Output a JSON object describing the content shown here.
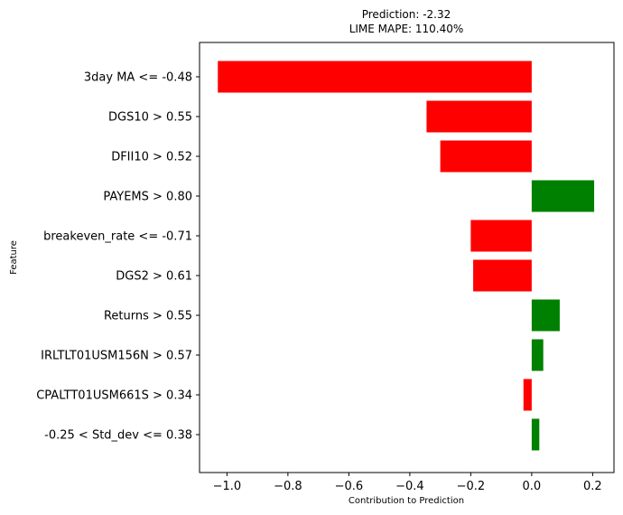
{
  "chart_data": {
    "type": "bar",
    "orientation": "horizontal",
    "title": "Prediction: -2.32",
    "subtitle": "LIME MAPE: 110.40%",
    "xlabel": "Contribution to Prediction",
    "ylabel": "Feature",
    "xlim": [
      -1.09,
      0.27
    ],
    "xticks": [
      -1.0,
      -0.8,
      -0.6,
      -0.4,
      -0.2,
      0.0,
      0.2
    ],
    "xtick_labels": [
      "−1.0",
      "−0.8",
      "−0.6",
      "−0.4",
      "−0.2",
      "0.0",
      "0.2"
    ],
    "grid": false,
    "positive_color": "#008000",
    "negative_color": "#ff0000",
    "categories": [
      "3day MA <= -0.48",
      "DGS10 > 0.55",
      "DFII10 > 0.52",
      "PAYEMS > 0.80",
      "breakeven_rate <= -0.71",
      "DGS2 > 0.61",
      "Returns > 0.55",
      "IRLTLT01USM156N > 0.57",
      "CPALTT01USM661S > 0.34",
      "-0.25 < Std_dev <= 0.38"
    ],
    "values": [
      -1.03,
      -0.345,
      -0.3,
      0.205,
      -0.2,
      -0.192,
      0.092,
      0.038,
      -0.027,
      0.025
    ]
  }
}
